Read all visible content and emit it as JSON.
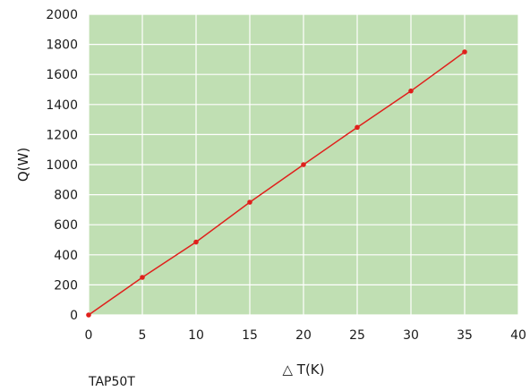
{
  "chart_data": {
    "type": "line",
    "x": [
      0,
      5,
      10,
      15,
      20,
      25,
      30,
      35
    ],
    "series": [
      {
        "values": [
          0,
          250,
          485,
          750,
          1000,
          1248,
          1490,
          1750
        ],
        "color": "#e0201c"
      }
    ],
    "xlabel": "△ T(K)",
    "ylabel": "Q(W)",
    "xlim": [
      0,
      40
    ],
    "ylim": [
      0,
      2000
    ],
    "x_ticks": [
      "0",
      "5",
      "10",
      "15",
      "20",
      "25",
      "30",
      "35",
      "40"
    ],
    "y_ticks": [
      "0",
      "200",
      "400",
      "600",
      "800",
      "1000",
      "1200",
      "1400",
      "1600",
      "1800",
      "2000"
    ],
    "grid": true,
    "background_color": "#c0dfb3",
    "grid_color": "#ffffff"
  },
  "caption": "TAP50T"
}
